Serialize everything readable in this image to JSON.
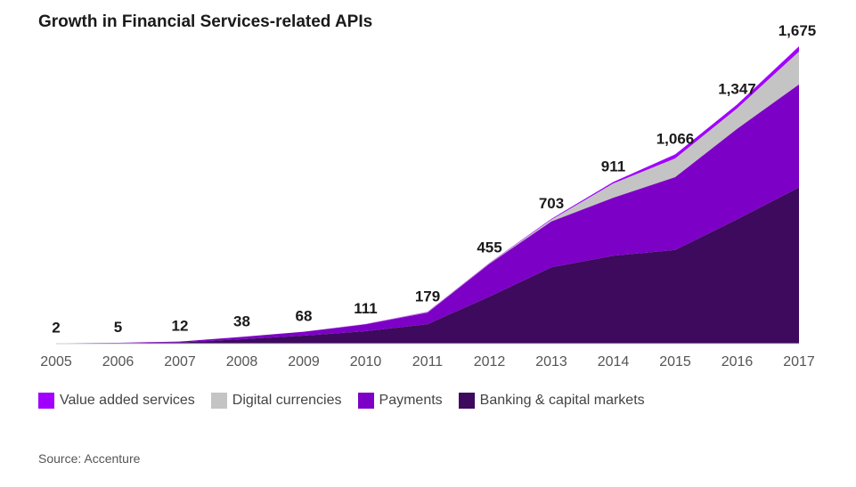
{
  "title": "Growth in Financial Services-related APIs",
  "source": "Source: Accenture",
  "chart_data": {
    "type": "area",
    "stacked": true,
    "title": "Growth in Financial Services-related APIs",
    "x": [
      "2005",
      "2006",
      "2007",
      "2008",
      "2009",
      "2010",
      "2011",
      "2012",
      "2013",
      "2014",
      "2015",
      "2016",
      "2017"
    ],
    "totals": [
      "2",
      "5",
      "12",
      "38",
      "68",
      "111",
      "179",
      "455",
      "703",
      "911",
      "1,066",
      "1,347",
      "1,675"
    ],
    "total_values": [
      2,
      5,
      12,
      38,
      68,
      111,
      179,
      455,
      703,
      911,
      1066,
      1347,
      1675
    ],
    "ylim": [
      0,
      1700
    ],
    "legend_position": "bottom-left",
    "series": [
      {
        "name": "Banking & capital markets",
        "color": "#3d0a5e",
        "values": [
          1,
          3,
          7,
          25,
          45,
          70,
          110,
          265,
          430,
          495,
          528,
          700,
          880
        ]
      },
      {
        "name": "Payments",
        "color": "#7d00c6",
        "values": [
          1,
          2,
          5,
          13,
          22,
          39,
          65,
          185,
          258,
          327,
          410,
          510,
          580
        ]
      },
      {
        "name": "Digital currencies",
        "color": "#c4c4c4",
        "values": [
          0,
          0,
          0,
          0,
          1,
          1,
          2,
          3,
          10,
          80,
          105,
          115,
          185
        ]
      },
      {
        "name": "Value added services",
        "color": "#a100ff",
        "values": [
          0,
          0,
          0,
          0,
          0,
          1,
          2,
          2,
          5,
          9,
          23,
          22,
          30
        ]
      }
    ],
    "legend_order": [
      "Value added services",
      "Digital currencies",
      "Payments",
      "Banking & capital markets"
    ]
  }
}
